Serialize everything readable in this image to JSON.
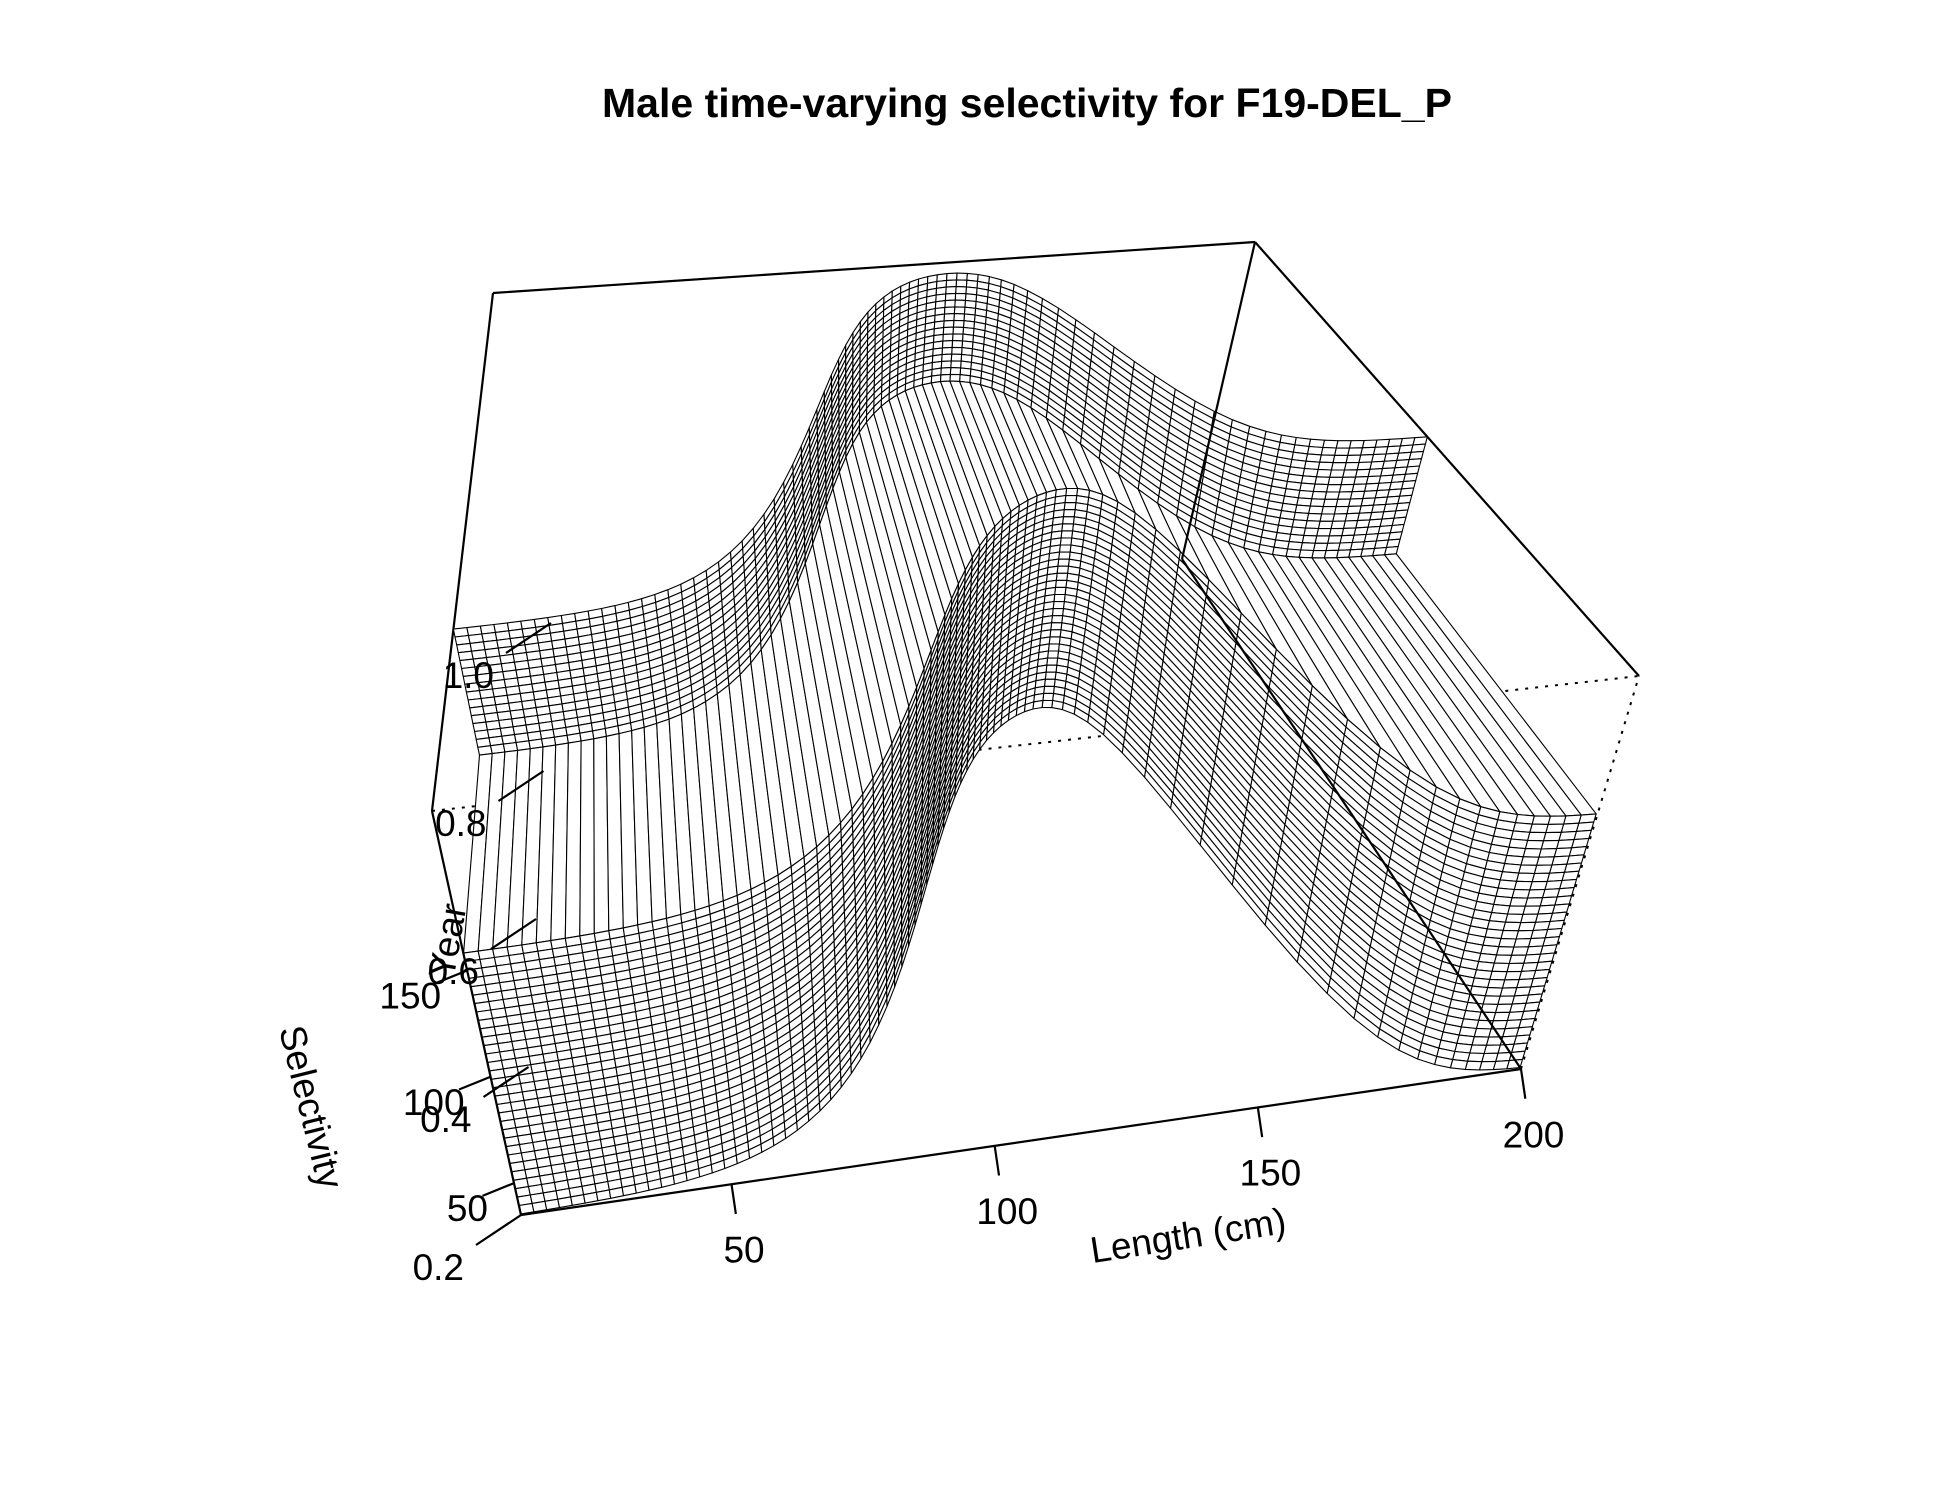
{
  "chart_data": {
    "type": "surface",
    "title": "Male time-varying selectivity for F19-DEL_P",
    "xlabel": "Length (cm)",
    "ylabel": "Year",
    "zlabel": "Selectivity",
    "xlim": [
      10,
      200
    ],
    "ylim": [
      35,
      225
    ],
    "zlim": [
      0.2,
      1.0
    ],
    "x_ticks": [
      "50",
      "100",
      "150",
      "200"
    ],
    "y_ticks": [
      "50",
      "100",
      "150"
    ],
    "z_ticks": [
      "0.2",
      "0.4",
      "0.6",
      "0.8",
      "1.0"
    ],
    "regimes": [
      {
        "years": [
          35,
          160
        ],
        "asc_mid": 95,
        "asc_width": 14,
        "desc_mid": 166,
        "desc_width": 6,
        "min": 0.2,
        "max": 0.84,
        "tail": 0.2
      },
      {
        "years": [
          165,
          225
        ],
        "asc_mid": 80,
        "asc_width": 11,
        "desc_mid": 153,
        "desc_width": 8,
        "min": 0.48,
        "max": 1.0,
        "tail": 0.64
      }
    ]
  }
}
